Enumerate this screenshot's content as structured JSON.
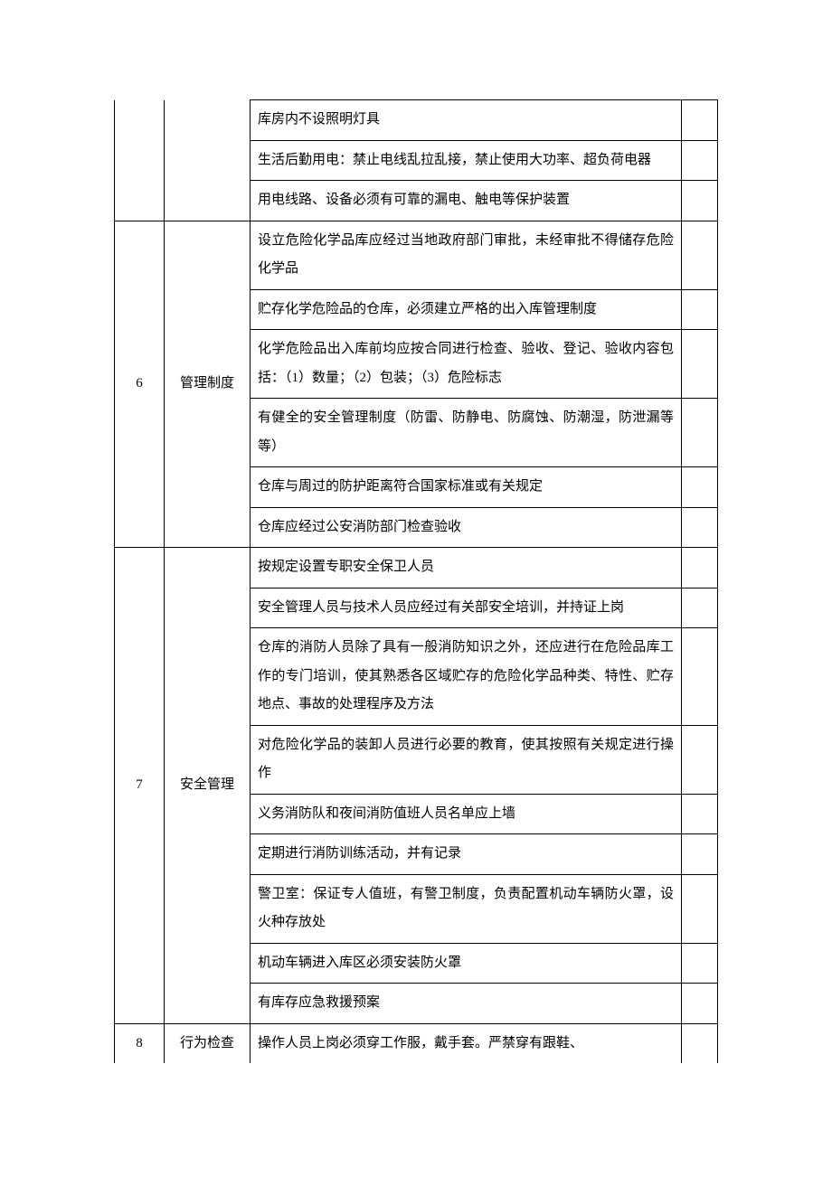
{
  "table": {
    "border_color": "#000000",
    "background_color": "#ffffff",
    "text_color": "#000000",
    "font_size": 15,
    "line_height": 2.1,
    "column_widths": {
      "num": 55,
      "category": 95,
      "blank": 40
    },
    "sections": [
      {
        "num": "",
        "category": "",
        "continuation": true,
        "items": [
          "库房内不设照明灯具",
          "生活后勤用电：禁止电线乱拉乱接，禁止使用大功率、超负荷电器",
          "用电线路、设备必须有可靠的漏电、触电等保护装置"
        ]
      },
      {
        "num": "6",
        "category": "管理制度",
        "continuation": false,
        "items": [
          "设立危险化学品库应经过当地政府部门审批，未经审批不得储存危险化学品",
          "贮存化学危险品的仓库，必须建立严格的出入库管理制度",
          "化学危险品出入库前均应按合同进行检查、验收、登记、验收内容包括：（1）数量；（2）包装；（3）危险标志",
          "有健全的安全管理制度（防雷、防静电、防腐蚀、防潮湿，防泄漏等等）",
          "仓库与周过的防护距离符合国家标准或有关规定",
          "仓库应经过公安消防部门检查验收"
        ]
      },
      {
        "num": "7",
        "category": "安全管理",
        "continuation": false,
        "items": [
          "按规定设置专职安全保卫人员",
          "安全管理人员与技术人员应经过有关部安全培训，并持证上岗",
          "仓库的消防人员除了具有一般消防知识之外，还应进行在危险品库工作的专门培训，使其熟悉各区域贮存的危险化学品种类、特性、贮存地点、事故的处理程序及方法",
          "对危险化学品的装卸人员进行必要的教育，使其按照有关规定进行操作",
          "义务消防队和夜间消防值班人员名单应上墙",
          "定期进行消防训练活动，并有记录",
          "警卫室：保证专人值班，有警卫制度，负责配置机动车辆防火罩，设火种存放处",
          "机动车辆进入库区必须安装防火罩",
          "有库存应急救援预案"
        ]
      },
      {
        "num": "8",
        "category": "行为检查",
        "continuation": false,
        "open_bottom": true,
        "items": [
          "操作人员上岗必须穿工作服，戴手套。严禁穿有跟鞋、"
        ]
      }
    ]
  }
}
